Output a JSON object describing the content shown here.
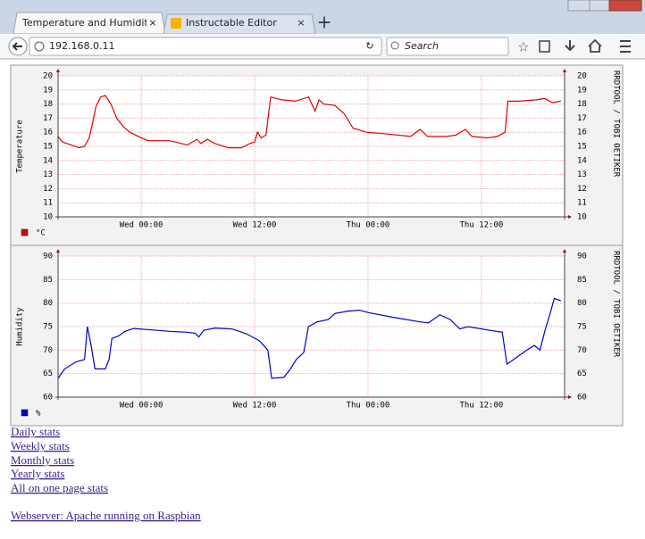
{
  "browser": {
    "tabs": [
      "Temperature and Humidity Grap",
      "Instructable Editor"
    ],
    "url": "192.168.0.11",
    "search_placeholder": "Search"
  },
  "chart_data": [
    {
      "type": "line",
      "ylabel": "Temperature",
      "watermark": "RRDTOOL / TOBI OETIKER",
      "grid": true,
      "x": [
        -8.8,
        -8.3,
        -7.4,
        -6.6,
        -6.0,
        -5.5,
        -5.2,
        -4.8,
        -4.3,
        -3.8,
        -3.2,
        -2.6,
        -1.9,
        -1.2,
        -0.3,
        0.7,
        3.0,
        4.9,
        5.9,
        6.3,
        7.0,
        7.8,
        9.2,
        10.6,
        11.5,
        12.0,
        12.3,
        12.7,
        13.2,
        13.7,
        14.9,
        16.3,
        17.7,
        18.4,
        18.8,
        19.3,
        20.5,
        21.5,
        22.4,
        23.8,
        25.7,
        28.5,
        29.5,
        30.3,
        32.3,
        33.3,
        34.3,
        35.0,
        36.6,
        37.7,
        38.5,
        38.8,
        39.9,
        41.8,
        42.7,
        43.5,
        44.4
      ],
      "series": [
        {
          "name": "°C",
          "color": "#e00000",
          "values": [
            15.7,
            15.3,
            15.1,
            14.9,
            15.0,
            15.6,
            16.5,
            17.8,
            18.5,
            18.6,
            18.0,
            17.0,
            16.4,
            16.0,
            15.7,
            15.4,
            15.4,
            15.1,
            15.5,
            15.2,
            15.5,
            15.2,
            14.9,
            14.9,
            15.2,
            15.3,
            16.0,
            15.6,
            15.8,
            18.5,
            18.3,
            18.2,
            18.5,
            17.5,
            18.3,
            18.0,
            17.9,
            17.3,
            16.3,
            16.0,
            15.9,
            15.7,
            16.2,
            15.7,
            15.7,
            15.8,
            16.2,
            15.7,
            15.6,
            15.7,
            16.0,
            18.2,
            18.2,
            18.3,
            18.4,
            18.1,
            18.2
          ]
        }
      ],
      "xlim": [
        -8.8,
        44.8
      ],
      "ylim": [
        10,
        20
      ],
      "xticks": [
        {
          "value": 0,
          "label": "Wed 00:00"
        },
        {
          "value": 12,
          "label": "Wed 12:00"
        },
        {
          "value": 24,
          "label": "Thu 00:00"
        },
        {
          "value": 36,
          "label": "Thu 12:00"
        }
      ],
      "yticks": [
        10,
        11,
        12,
        13,
        14,
        15,
        16,
        17,
        18,
        19,
        20
      ]
    },
    {
      "type": "line",
      "ylabel": "Humidity",
      "watermark": "RRDTOOL / TOBI OETIKER",
      "grid": true,
      "x": [
        -8.8,
        -8.1,
        -6.9,
        -6.0,
        -5.7,
        -5.3,
        -4.9,
        -3.8,
        -3.4,
        -3.1,
        -2.4,
        -1.7,
        -0.8,
        1.1,
        3.0,
        4.9,
        5.7,
        6.1,
        6.6,
        7.8,
        9.6,
        11.1,
        12.5,
        13.4,
        13.8,
        15.1,
        15.8,
        16.4,
        17.2,
        17.7,
        18.6,
        19.8,
        20.5,
        21.9,
        23.1,
        24.0,
        26.6,
        29.5,
        30.4,
        31.6,
        32.7,
        33.7,
        34.6,
        36.6,
        38.2,
        38.7,
        39.4,
        40.8,
        41.6,
        42.2,
        42.7,
        43.3,
        43.7,
        44.4
      ],
      "series": [
        {
          "name": "%",
          "color": "#0000c8",
          "values": [
            64,
            66,
            67.5,
            68,
            75,
            71,
            66,
            66,
            68,
            72.5,
            73,
            74,
            74.6,
            74.3,
            74.0,
            73.8,
            73.6,
            72.8,
            74.2,
            74.7,
            74.5,
            73.5,
            72,
            70,
            64,
            64.2,
            66,
            68,
            69.5,
            75,
            76,
            76.5,
            77.8,
            78.3,
            78.5,
            78,
            77,
            76,
            75.8,
            77.5,
            76.5,
            74.5,
            75,
            74.3,
            73.8,
            67,
            68,
            70,
            71,
            70,
            74,
            78,
            81,
            80.5
          ]
        }
      ],
      "xlim": [
        -8.8,
        44.8
      ],
      "ylim": [
        60,
        90
      ],
      "xticks": [
        {
          "value": 0,
          "label": "Wed 00:00"
        },
        {
          "value": 12,
          "label": "Wed 12:00"
        },
        {
          "value": 24,
          "label": "Thu 00:00"
        },
        {
          "value": 36,
          "label": "Thu 12:00"
        }
      ],
      "yticks": [
        60,
        65,
        70,
        75,
        80,
        85,
        90
      ]
    }
  ],
  "links": [
    "Daily stats",
    "Weekly stats",
    "Monthly stats",
    "Yearly stats",
    "All on one page stats",
    "Webserver: Apache running on Raspbian"
  ]
}
